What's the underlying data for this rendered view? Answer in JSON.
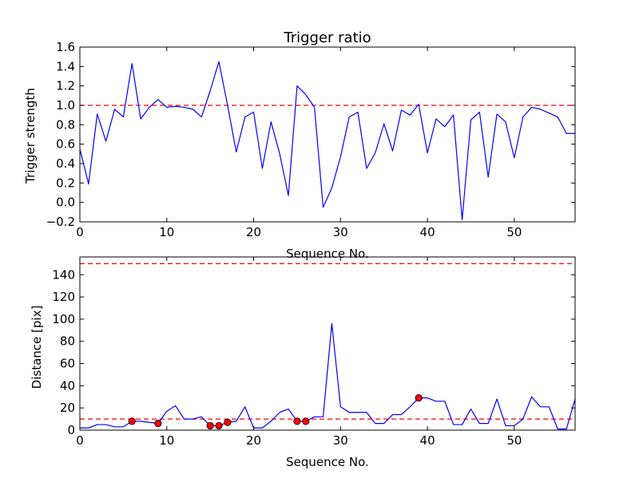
{
  "chart_data": [
    {
      "type": "line",
      "title": "Trigger ratio",
      "xlabel": "Sequence No.",
      "ylabel": "Trigger strength",
      "xlim": [
        0,
        57
      ],
      "ylim": [
        -0.2,
        1.6
      ],
      "xticks": [
        "0",
        "10",
        "20",
        "30",
        "40",
        "50"
      ],
      "yticks": [
        "−0.2",
        "0.0",
        "0.2",
        "0.4",
        "0.6",
        "0.8",
        "1.0",
        "1.2",
        "1.4",
        "1.6"
      ],
      "threshold": 1.0,
      "series": [
        {
          "name": "trigger strength",
          "color": "#0000ff",
          "x": [
            0,
            1,
            2,
            3,
            4,
            5,
            6,
            7,
            8,
            9,
            10,
            11,
            12,
            13,
            14,
            15,
            16,
            17,
            18,
            19,
            20,
            21,
            22,
            23,
            24,
            25,
            26,
            27,
            28,
            29,
            30,
            31,
            32,
            33,
            34,
            35,
            36,
            37,
            38,
            39,
            40,
            41,
            42,
            43,
            44,
            45,
            46,
            47,
            48,
            49,
            50,
            51,
            52,
            53,
            54,
            55,
            56,
            57
          ],
          "values": [
            0.55,
            0.19,
            0.91,
            0.63,
            0.96,
            0.88,
            1.43,
            0.86,
            0.98,
            1.06,
            0.98,
            0.99,
            0.98,
            0.96,
            0.88,
            1.15,
            1.45,
            1.0,
            0.52,
            0.88,
            0.93,
            0.35,
            0.83,
            0.5,
            0.07,
            1.2,
            1.11,
            0.98,
            -0.05,
            0.15,
            0.47,
            0.88,
            0.93,
            0.35,
            0.51,
            0.81,
            0.53,
            0.95,
            0.9,
            1.01,
            0.51,
            0.86,
            0.78,
            0.9,
            -0.18,
            0.85,
            0.93,
            0.26,
            0.91,
            0.83,
            0.46,
            0.88,
            0.98,
            0.96,
            0.92,
            0.88,
            0.71,
            0.71
          ]
        }
      ],
      "threshold_color": "#ff0000"
    },
    {
      "type": "line",
      "title": "",
      "xlabel": "Sequence No.",
      "ylabel": "Distance [pix]",
      "xlim": [
        0,
        57
      ],
      "ylim": [
        0,
        156
      ],
      "xticks": [
        "0",
        "10",
        "20",
        "30",
        "40",
        "50"
      ],
      "yticks": [
        "0",
        "20",
        "40",
        "60",
        "80",
        "100",
        "120",
        "140"
      ],
      "thresholds": [
        10,
        150
      ],
      "series": [
        {
          "name": "distance",
          "color": "#0000ff",
          "x": [
            0,
            1,
            2,
            3,
            4,
            5,
            6,
            7,
            8,
            9,
            10,
            11,
            12,
            13,
            14,
            15,
            16,
            17,
            18,
            19,
            20,
            21,
            22,
            23,
            24,
            25,
            26,
            27,
            28,
            29,
            30,
            31,
            32,
            33,
            34,
            35,
            36,
            37,
            38,
            39,
            40,
            41,
            42,
            43,
            44,
            45,
            46,
            47,
            48,
            49,
            50,
            51,
            52,
            53,
            54,
            55,
            56,
            57
          ],
          "values": [
            2,
            2,
            5,
            5,
            3,
            3,
            8,
            8,
            7,
            6,
            17,
            22,
            10,
            10,
            12,
            4,
            4,
            7,
            8,
            21,
            2,
            2,
            8,
            16,
            19,
            8,
            8,
            12,
            12,
            96,
            21,
            16,
            16,
            16,
            6,
            6,
            14,
            14,
            21,
            29,
            29,
            26,
            26,
            5,
            5,
            19,
            6,
            6,
            28,
            4,
            4,
            10,
            30,
            21,
            21,
            1,
            1,
            28
          ]
        },
        {
          "name": "flagged points",
          "color": "#ff0000",
          "x": [
            6,
            9,
            15,
            16,
            17,
            25,
            26,
            39
          ],
          "values": [
            8,
            6,
            4,
            4,
            7,
            8,
            8,
            29
          ]
        }
      ],
      "threshold_color": "#ff0000"
    }
  ]
}
